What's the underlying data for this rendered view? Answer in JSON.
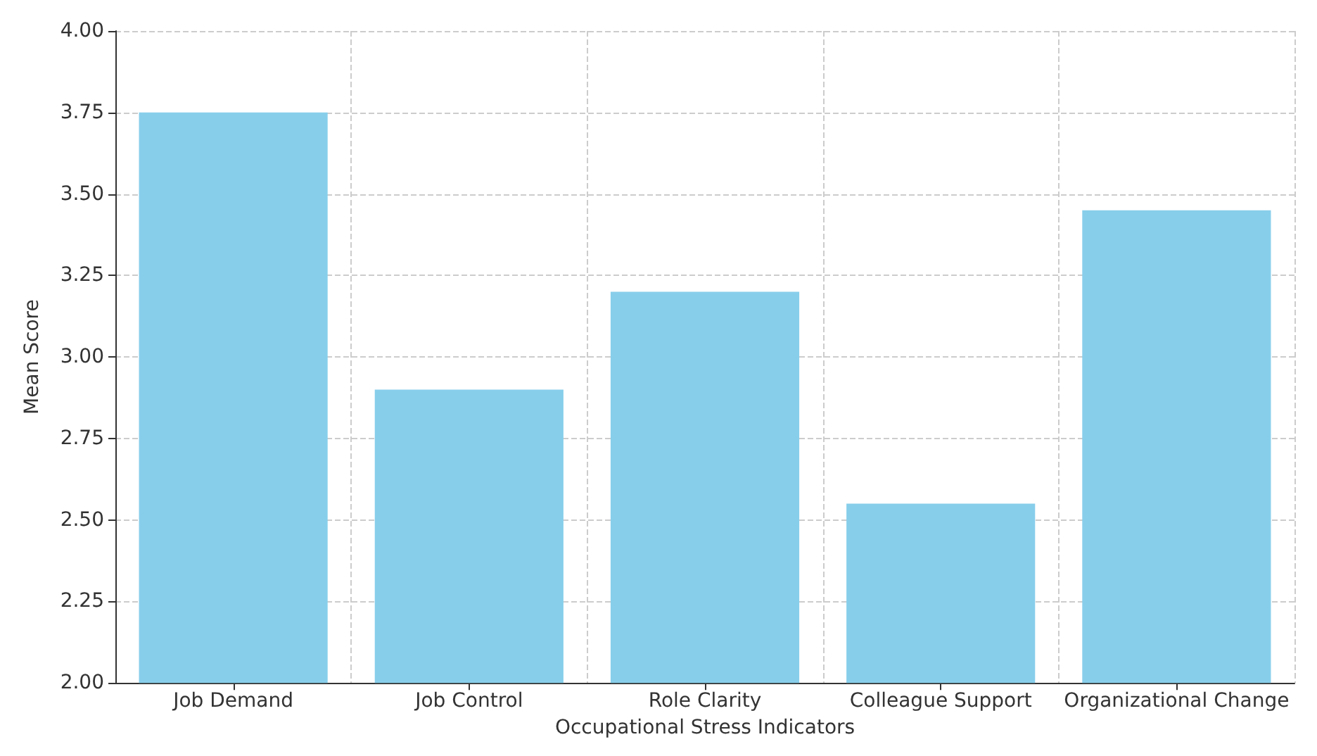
{
  "chart_data": {
    "type": "bar",
    "xlabel": "Occupational Stress Indicators",
    "ylabel": "Mean Score",
    "categories": [
      "Job Demand",
      "Job Control",
      "Role Clarity",
      "Colleague Support",
      "Organizational Change"
    ],
    "values": [
      3.75,
      2.9,
      3.2,
      2.55,
      3.45
    ],
    "color": "#87ceeb",
    "ylim": [
      2,
      4
    ],
    "yticks": [
      {
        "value": 2,
        "label": "2.00"
      },
      {
        "value": 2.25,
        "label": "2.25"
      },
      {
        "value": 2.5,
        "label": "2.50"
      },
      {
        "value": 2.75,
        "label": "2.75"
      },
      {
        "value": 3,
        "label": "3.00"
      },
      {
        "value": 3.25,
        "label": "3.25"
      },
      {
        "value": 3.5,
        "label": "3.50"
      },
      {
        "value": 3.75,
        "label": "3.75"
      },
      {
        "value": 4,
        "label": "4.00"
      }
    ],
    "grid": true
  }
}
